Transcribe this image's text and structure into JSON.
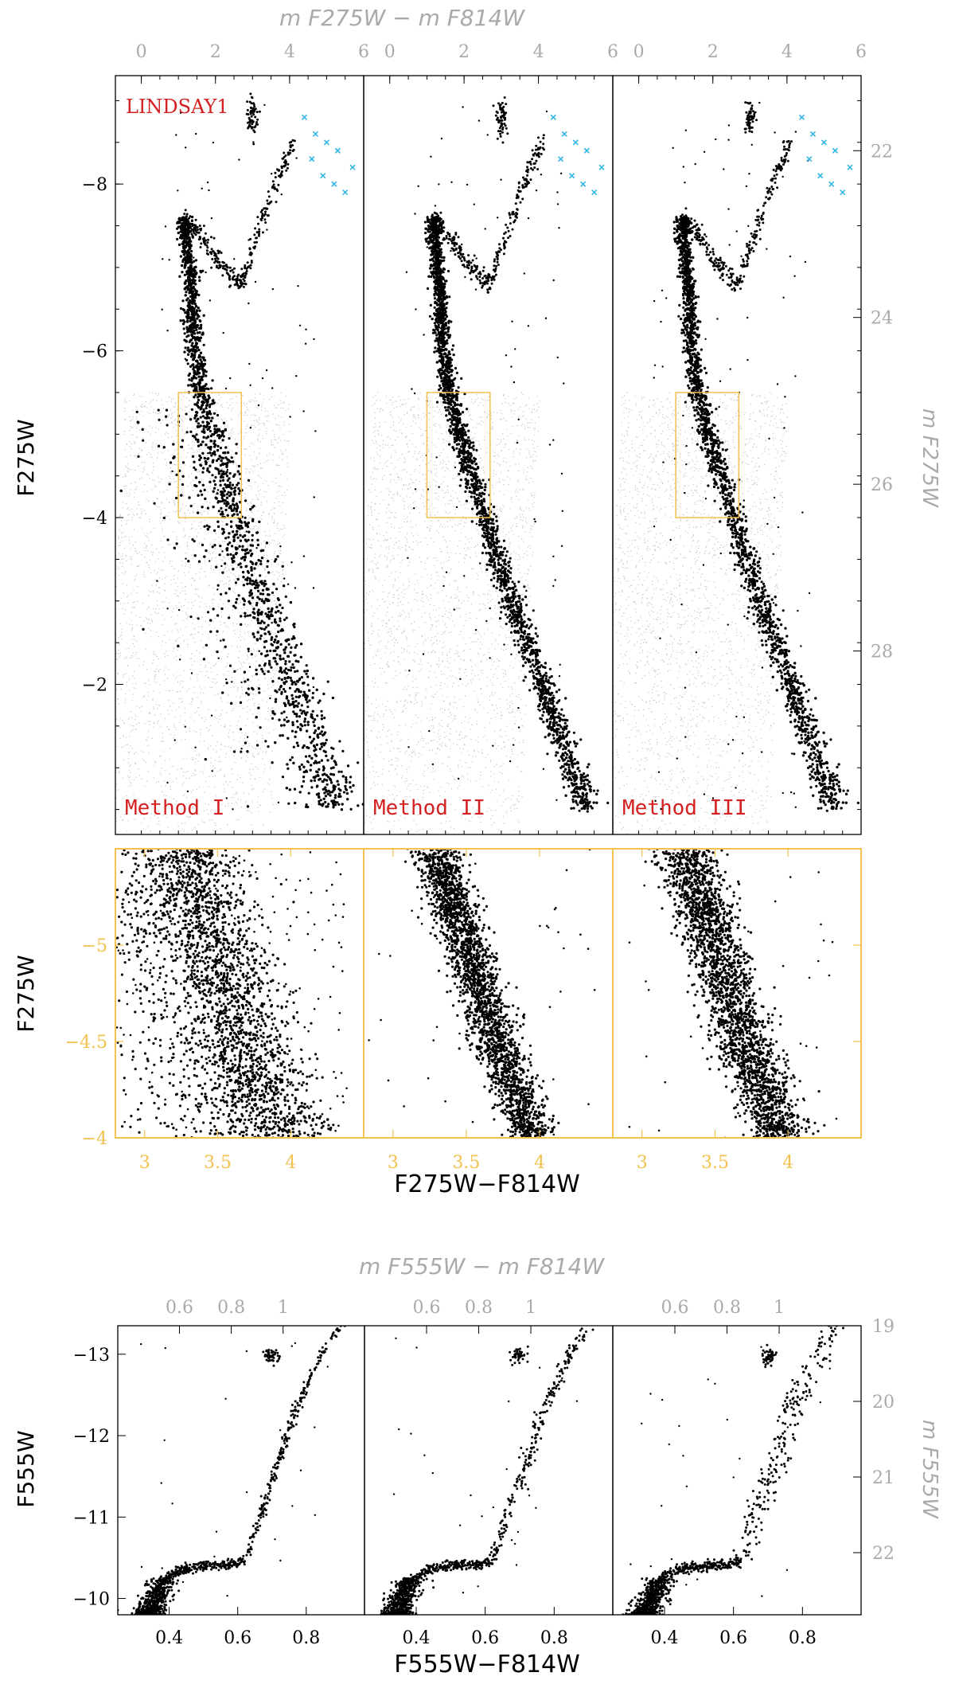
{
  "figure": {
    "cluster": "LINDSAY1",
    "colors": {
      "black": "#000000",
      "grey_text": "#aaaaaa",
      "grey_field": "#c8c8c8",
      "red": "#d42020",
      "gold": "#f2c14e",
      "cyan": "#33b5e5"
    }
  },
  "chart_data": [
    {
      "id": "top",
      "type": "scatter",
      "panels": [
        "Method I",
        "Method II",
        "Method III"
      ],
      "annotation": "LINDSAY1",
      "xlabel_top": "m F275W − m F814W",
      "ylabel_left": "F275W",
      "ylabel_right": "m F275W",
      "x_top_ticks": [
        "0",
        "2",
        "4",
        "6"
      ],
      "x_top_range": [
        -0.7,
        6.0
      ],
      "y_left_ticks": [
        "−8",
        "−6",
        "−4",
        "−2"
      ],
      "y_left_range": [
        -9.3,
        -0.2
      ],
      "y_right_ticks": [
        "22",
        "24",
        "26",
        "28"
      ],
      "zoom_box": {
        "x": [
          1.0,
          2.7
        ],
        "y": [
          -5.5,
          -4.0
        ]
      },
      "sequence": {
        "main_sequence_ridge": [
          [
            1.15,
            -7.6
          ],
          [
            1.3,
            -7.0
          ],
          [
            1.45,
            -6.0
          ],
          [
            1.6,
            -5.5
          ],
          [
            1.9,
            -5.0
          ],
          [
            2.2,
            -4.5
          ],
          [
            2.55,
            -4.0
          ],
          [
            2.9,
            -3.5
          ],
          [
            3.3,
            -3.0
          ],
          [
            3.7,
            -2.5
          ],
          [
            4.1,
            -2.0
          ],
          [
            4.5,
            -1.5
          ],
          [
            4.9,
            -1.0
          ],
          [
            5.3,
            -0.5
          ]
        ],
        "subgiant_branch": [
          [
            1.15,
            -7.6
          ],
          [
            1.6,
            -7.4
          ],
          [
            2.0,
            -7.1
          ],
          [
            2.4,
            -6.9
          ],
          [
            2.7,
            -6.8
          ]
        ],
        "red_giant_branch": [
          [
            2.7,
            -6.8
          ],
          [
            3.0,
            -7.2
          ],
          [
            3.3,
            -7.6
          ],
          [
            3.6,
            -8.0
          ],
          [
            3.9,
            -8.3
          ],
          [
            4.1,
            -8.5
          ]
        ],
        "red_clump": [
          3.0,
          -8.8
        ],
        "blue_stragglers": [
          [
            0.9,
            -8.2
          ],
          [
            1.1,
            -7.9
          ]
        ],
        "agb_stars_cyan": [
          [
            4.4,
            -8.8
          ],
          [
            4.7,
            -8.6
          ],
          [
            5.0,
            -8.5
          ],
          [
            5.3,
            -8.4
          ],
          [
            5.7,
            -8.2
          ],
          [
            4.6,
            -8.3
          ],
          [
            4.9,
            -8.1
          ],
          [
            5.2,
            -8.0
          ],
          [
            5.5,
            -7.9
          ]
        ]
      }
    },
    {
      "id": "middle",
      "type": "scatter",
      "panels": [
        "Method I",
        "Method II",
        "Method III"
      ],
      "xlabel": "F275W−F814W",
      "ylabel": "F275W",
      "x_ticks": [
        "3",
        "3.5",
        "4"
      ],
      "x_range": [
        2.8,
        4.5
      ],
      "y_ticks": [
        "−5",
        "−4.5",
        "−4"
      ],
      "y_range": [
        -5.5,
        -4.0
      ],
      "ridge": [
        [
          3.3,
          -5.5
        ],
        [
          3.5,
          -5.0
        ],
        [
          3.7,
          -4.5
        ],
        [
          3.95,
          -4.0
        ]
      ]
    },
    {
      "id": "bottom",
      "type": "scatter",
      "panels": [
        "",
        "",
        ""
      ],
      "xlabel": "F555W−F814W",
      "xlabel_top": "m F555W − m F814W",
      "ylabel_left": "F555W",
      "ylabel_right": "m F555W",
      "x_ticks": [
        "0.4",
        "0.6",
        "0.8"
      ],
      "x_top_ticks": [
        "0.6",
        "0.8",
        "1"
      ],
      "x_range": [
        0.25,
        0.97
      ],
      "y_left_ticks": [
        "−13",
        "−12",
        "−11",
        "−10"
      ],
      "y_left_range": [
        -13.35,
        -9.8
      ],
      "y_right_ticks": [
        "19",
        "20",
        "21",
        "22"
      ],
      "sequence": {
        "main_sequence": [
          [
            0.33,
            -9.8
          ],
          [
            0.35,
            -10.0
          ],
          [
            0.38,
            -10.2
          ],
          [
            0.43,
            -10.35
          ],
          [
            0.5,
            -10.4
          ],
          [
            0.58,
            -10.42
          ],
          [
            0.62,
            -10.45
          ]
        ],
        "red_giant_branch": [
          [
            0.62,
            -10.45
          ],
          [
            0.65,
            -10.8
          ],
          [
            0.68,
            -11.2
          ],
          [
            0.72,
            -11.7
          ],
          [
            0.76,
            -12.2
          ],
          [
            0.81,
            -12.7
          ],
          [
            0.86,
            -13.1
          ],
          [
            0.9,
            -13.35
          ]
        ],
        "red_clump": [
          0.7,
          -12.98
        ]
      }
    }
  ]
}
